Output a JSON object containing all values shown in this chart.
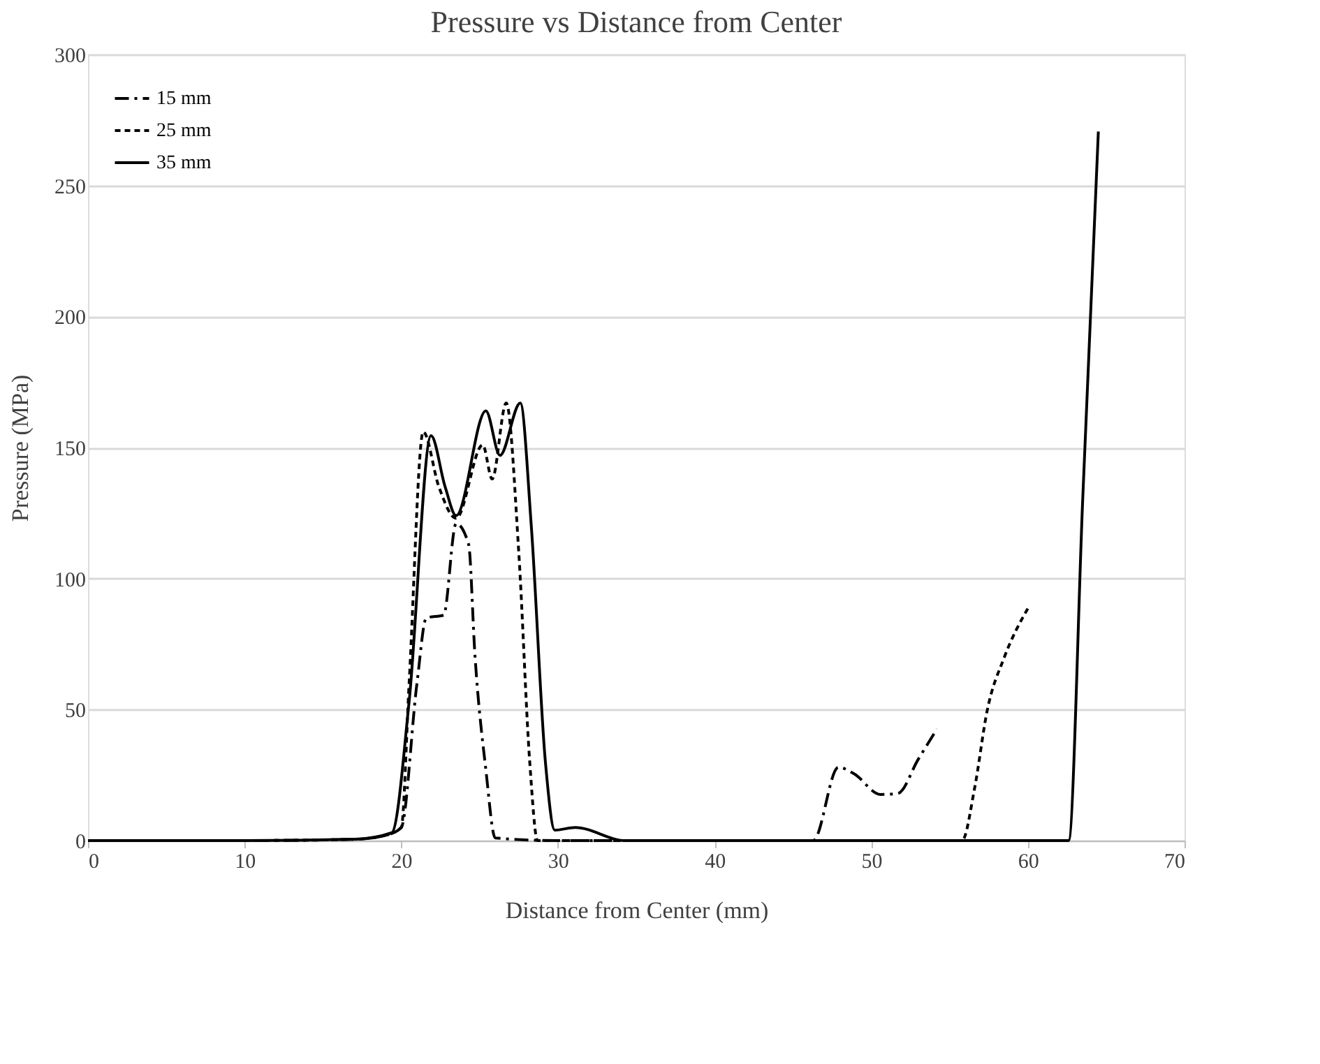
{
  "chart_data": {
    "type": "line",
    "title": "Pressure vs Distance from Center",
    "xlabel": "Distance from Center (mm)",
    "ylabel": "Pressure (MPa)",
    "xlim": [
      0,
      70
    ],
    "xticks": [
      0,
      10,
      20,
      30,
      40,
      50,
      60,
      70
    ],
    "ylim": [
      0,
      300
    ],
    "yticks": [
      0,
      50,
      100,
      150,
      200,
      250,
      300
    ],
    "grid": "y",
    "legend": "top left",
    "marker": "none",
    "series": [
      {
        "name": "15 mm",
        "color": "#000000",
        "line_style": "dashdot",
        "x": [
          0,
          10,
          17,
          19,
          20,
          21,
          21.6,
          22.7,
          23.5,
          24.3,
          24.7,
          25.4,
          26,
          30,
          46.3,
          47.9,
          48.9,
          50.6,
          51.7,
          53,
          54.2
        ],
        "values": [
          0,
          0,
          0.5,
          2,
          5,
          60,
          85,
          86,
          121,
          113,
          71,
          27,
          1,
          0,
          0,
          28,
          25.5,
          17.6,
          18,
          31,
          42.6
        ]
      },
      {
        "name": "25 mm",
        "color": "#000000",
        "line_style": "dashed",
        "x": [
          0,
          10,
          17,
          19,
          20,
          20.5,
          21.4,
          22.4,
          23.5,
          25.2,
          25.8,
          26.7,
          27.5,
          28.2,
          28.7,
          40,
          55.8,
          56.6,
          57.4,
          58.5,
          60
        ],
        "values": [
          0,
          0,
          0.5,
          2,
          5,
          60,
          156,
          135,
          123,
          151,
          138,
          167,
          110,
          30,
          0,
          0,
          0,
          20,
          49.5,
          70,
          88.6
        ]
      },
      {
        "name": "35 mm",
        "color": "#000000",
        "line_style": "solid",
        "x": [
          0,
          10,
          17,
          19.4,
          20.5,
          21.9,
          22.8,
          23.5,
          25.4,
          26.3,
          27.6,
          28.3,
          29.2,
          29.8,
          31.1,
          34.3,
          62.6,
          63.5,
          64.5
        ],
        "values": [
          0,
          0,
          0.5,
          3,
          53,
          154.5,
          135,
          124,
          164,
          147,
          167,
          120,
          30,
          4,
          5,
          0,
          0,
          130,
          270.6
        ]
      }
    ]
  }
}
